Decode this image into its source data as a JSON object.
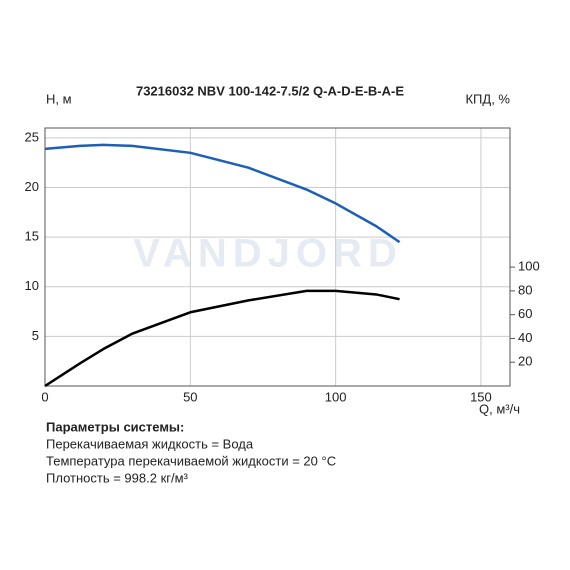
{
  "chart_data": {
    "type": "line",
    "title": "73216032 NBV 100-142-7.5/2 Q-A-D-E-B-A-E",
    "watermark": "VANDJORD",
    "ylabel": "H, м",
    "y2label": "КПД, %",
    "xlabel": "Q, м³/ч",
    "x": [
      0,
      12,
      20,
      30,
      50,
      70,
      90,
      100,
      114,
      122
    ],
    "series": [
      {
        "color": "#1c5fb8",
        "values": [
          23.9,
          24.2,
          24.3,
          24.2,
          23.5,
          22.0,
          19.8,
          18.4,
          16.1,
          14.5
        ]
      },
      {
        "color": "#000000",
        "axis": "y2",
        "values": [
          0,
          19,
          31,
          44,
          62,
          72,
          80,
          80,
          77,
          73
        ]
      }
    ],
    "xlim": [
      0,
      160
    ],
    "xticks": [
      0,
      50,
      100,
      150
    ],
    "ylim": [
      0,
      26
    ],
    "yticks": [
      5,
      10,
      15,
      20,
      25
    ],
    "y2lim": [
      0,
      217
    ],
    "y2ticks": [
      20,
      40,
      60,
      80,
      100
    ],
    "grid": true,
    "notes": [
      "Параметры системы:",
      "Перекачиваемая жидкость = Вода",
      "Температура перекачиваемой жидкости = 20 °C",
      "Плотность = 998.2 кг/м³"
    ]
  }
}
